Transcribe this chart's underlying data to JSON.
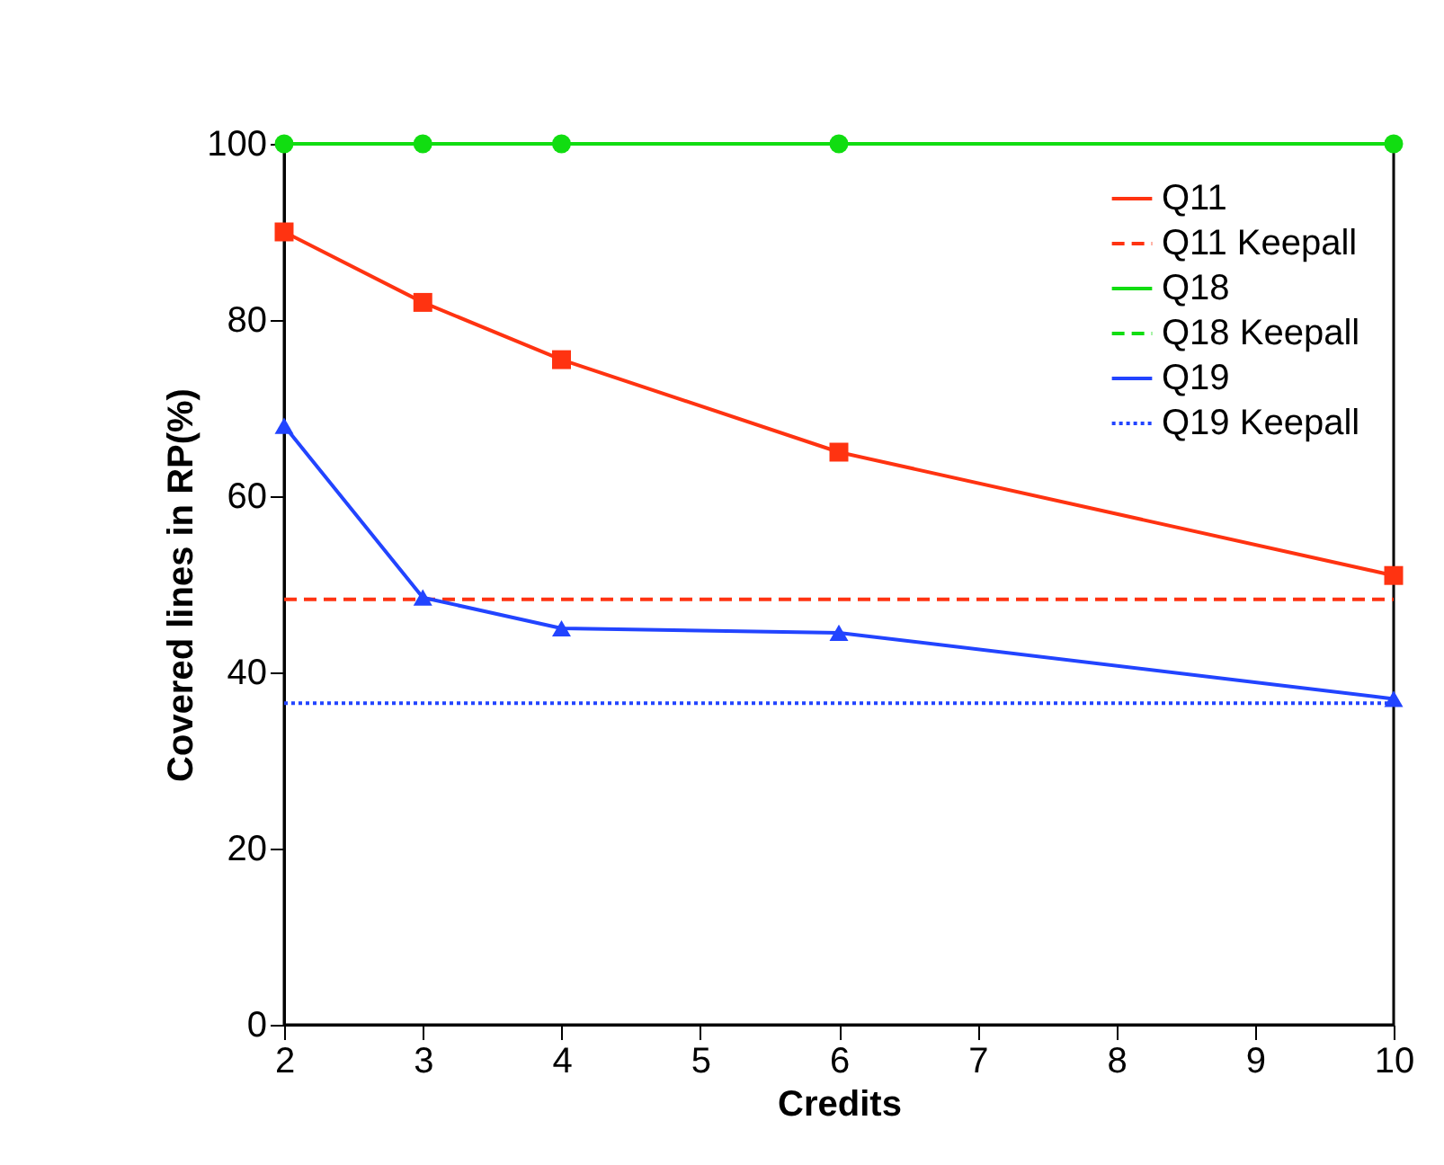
{
  "chart_data": {
    "type": "line",
    "xlabel": "Credits",
    "ylabel": "Covered lines in RP(%)",
    "xlim": [
      2,
      10
    ],
    "xticks": [
      2,
      3,
      4,
      5,
      6,
      7,
      8,
      9,
      10
    ],
    "ylim": [
      0,
      100
    ],
    "yticks": [
      0,
      20,
      40,
      60,
      80,
      100
    ],
    "legend": "top right",
    "grid": false,
    "series": [
      {
        "name": "Q11",
        "color": "#ff3311",
        "marker": "square",
        "line_style": "solid",
        "x": [
          2,
          3,
          4,
          6,
          10
        ],
        "values": [
          90,
          82,
          75.5,
          65,
          51
        ]
      },
      {
        "name": "Q11 Keepall",
        "color": "#ff3311",
        "marker": "none",
        "line_style": "dashed",
        "x": [
          2,
          10
        ],
        "values": [
          48.3,
          48.3
        ]
      },
      {
        "name": "Q18",
        "color": "#11dd11",
        "marker": "circle",
        "line_style": "solid",
        "x": [
          2,
          3,
          4,
          6,
          10
        ],
        "values": [
          100,
          100,
          100,
          100,
          100
        ]
      },
      {
        "name": "Q18 Keepall",
        "color": "#11dd11",
        "marker": "none",
        "line_style": "dashed",
        "values": [
          null,
          null
        ]
      },
      {
        "name": "Q19",
        "color": "#2244ff",
        "marker": "triangle",
        "line_style": "solid",
        "x": [
          2,
          3,
          4,
          6,
          10
        ],
        "values": [
          68,
          48.5,
          45,
          44.5,
          37
        ]
      },
      {
        "name": "Q19 Keepall",
        "color": "#2244ff",
        "marker": "none",
        "line_style": "dotted",
        "x": [
          2,
          10
        ],
        "values": [
          36.5,
          36.5
        ]
      }
    ]
  }
}
